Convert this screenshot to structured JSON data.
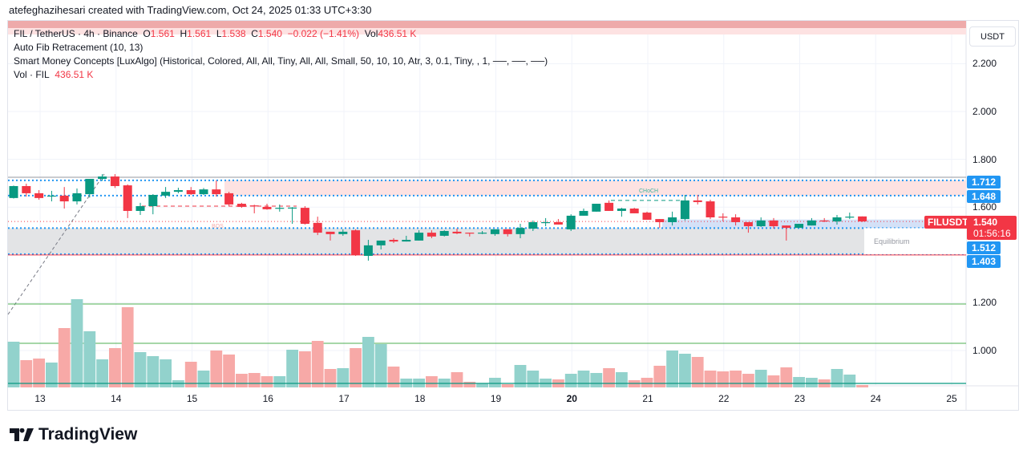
{
  "credit": "atefeghazihesari created with TradingView.com, Oct 24, 2025 01:33 UTC+3:30",
  "legend": {
    "symbol": "FIL / TetherUS · 4h · Binance",
    "o_label": "O",
    "o": "1.561",
    "h_label": "H",
    "h": "1.561",
    "l_label": "L",
    "l": "1.538",
    "c_label": "C",
    "c": "1.540",
    "change": "−0.022 (−1.41%)",
    "vol_label": "Vol",
    "vol": "436.51 K",
    "fib": "Auto Fib Retracement (10, 13)",
    "smc": "Smart Money Concepts [LuxAlgo] (Historical, Colored, All, All, Tiny, All, All, Small, 50, 10, 10, Atr, 3, 0.1, Tiny, , 1, ──, ──, ──)",
    "vol_title": "Vol · FIL",
    "vol_value": "436.51 K"
  },
  "currency_button": "USDT",
  "price_ticks": [
    "2.200",
    "2.000",
    "1.800",
    "1.600",
    "1.200",
    "1.000"
  ],
  "price_tick_values": [
    2.2,
    2.0,
    1.8,
    1.6,
    1.2,
    1.0
  ],
  "price_labels": [
    "1.712",
    "1.648",
    "1.512",
    "1.403"
  ],
  "current": {
    "symbol": "FILUSDT",
    "price": "1.540",
    "countdown": "01:56:16"
  },
  "annotations": {
    "bos": "BOS",
    "choch": "CHoCH",
    "equilibrium": "Equilibrium"
  },
  "days": [
    "13",
    "14",
    "15",
    "16",
    "17",
    "18",
    "19",
    "20",
    "21",
    "22",
    "23",
    "24",
    "25"
  ],
  "colors": {
    "up": "#089981",
    "down": "#f23645",
    "vol_up": "#92d2cc",
    "vol_down": "#f7a9a7",
    "zone_premium": "#fde2e2",
    "zone_eq": "#e3e4e6",
    "zone_blue": "#c9d9f5",
    "level": "#2196f3"
  },
  "brand": "TradingView",
  "chart_data": {
    "type": "candlestick",
    "timeframe": "4h",
    "ylim": [
      0.85,
      2.3
    ],
    "ohlc": [
      [
        1.638,
        1.688,
        1.69,
        1.636
      ],
      [
        1.688,
        1.658,
        1.698,
        1.644
      ],
      [
        1.658,
        1.638,
        1.671,
        1.631
      ],
      [
        1.644,
        1.648,
        1.668,
        1.624
      ],
      [
        1.648,
        1.624,
        1.684,
        1.594
      ],
      [
        1.624,
        1.658,
        1.678,
        1.611
      ],
      [
        1.654,
        1.718,
        1.718,
        1.64
      ],
      [
        1.718,
        1.728,
        1.738,
        1.71
      ],
      [
        1.728,
        1.688,
        1.738,
        1.68
      ],
      [
        1.691,
        1.584,
        1.695,
        1.554
      ],
      [
        1.584,
        1.604,
        1.618,
        1.567
      ],
      [
        1.604,
        1.651,
        1.654,
        1.57
      ],
      [
        1.648,
        1.664,
        1.684,
        1.638
      ],
      [
        1.664,
        1.671,
        1.681,
        1.658
      ],
      [
        1.671,
        1.654,
        1.684,
        1.651
      ],
      [
        1.654,
        1.674,
        1.68,
        1.651
      ],
      [
        1.674,
        1.654,
        1.711,
        1.644
      ],
      [
        1.658,
        1.611,
        1.664,
        1.604
      ],
      [
        1.614,
        1.601,
        1.618,
        1.597
      ],
      [
        1.607,
        1.604,
        1.61,
        1.574
      ],
      [
        1.601,
        1.591,
        1.614,
        1.589
      ],
      [
        1.594,
        1.597,
        1.611,
        1.581
      ],
      [
        1.597,
        1.598,
        1.6,
        1.53
      ],
      [
        1.597,
        1.53,
        1.604,
        1.527
      ],
      [
        1.534,
        1.493,
        1.56,
        1.483
      ],
      [
        1.497,
        1.487,
        1.497,
        1.46
      ],
      [
        1.487,
        1.497,
        1.507,
        1.48
      ],
      [
        1.503,
        1.399,
        1.507,
        1.396
      ],
      [
        1.396,
        1.44,
        1.463,
        1.376
      ],
      [
        1.44,
        1.46,
        1.46,
        1.423
      ],
      [
        1.463,
        1.456,
        1.47,
        1.45
      ],
      [
        1.456,
        1.463,
        1.48,
        1.456
      ],
      [
        1.46,
        1.493,
        1.503,
        1.46
      ],
      [
        1.493,
        1.477,
        1.503,
        1.47
      ],
      [
        1.48,
        1.5,
        1.503,
        1.477
      ],
      [
        1.497,
        1.49,
        1.51,
        1.487
      ],
      [
        1.493,
        1.49,
        1.493,
        1.477
      ],
      [
        1.49,
        1.493,
        1.5,
        1.487
      ],
      [
        1.487,
        1.507,
        1.507,
        1.48
      ],
      [
        1.507,
        1.487,
        1.507,
        1.477
      ],
      [
        1.487,
        1.513,
        1.53,
        1.47
      ],
      [
        1.51,
        1.537,
        1.544,
        1.5
      ],
      [
        1.535,
        1.537,
        1.554,
        1.52
      ],
      [
        1.537,
        1.527,
        1.55,
        1.527
      ],
      [
        1.507,
        1.564,
        1.57,
        1.5
      ],
      [
        1.564,
        1.584,
        1.594,
        1.564
      ],
      [
        1.581,
        1.614,
        1.614,
        1.581
      ],
      [
        1.618,
        1.584,
        1.628,
        1.584
      ],
      [
        1.584,
        1.594,
        1.597,
        1.56
      ],
      [
        1.594,
        1.574,
        1.597,
        1.574
      ],
      [
        1.577,
        1.547,
        1.581,
        1.547
      ],
      [
        1.55,
        1.537,
        1.55,
        1.513
      ],
      [
        1.537,
        1.557,
        1.581,
        1.523
      ],
      [
        1.55,
        1.628,
        1.651,
        1.544
      ],
      [
        1.628,
        1.621,
        1.651,
        1.611
      ],
      [
        1.624,
        1.557,
        1.631,
        1.55
      ],
      [
        1.56,
        1.557,
        1.574,
        1.54
      ],
      [
        1.557,
        1.537,
        1.57,
        1.523
      ],
      [
        1.537,
        1.52,
        1.537,
        1.493
      ],
      [
        1.52,
        1.544,
        1.557,
        1.517
      ],
      [
        1.544,
        1.52,
        1.554,
        1.51
      ],
      [
        1.523,
        1.513,
        1.523,
        1.46
      ],
      [
        1.513,
        1.53,
        1.53,
        1.513
      ],
      [
        1.523,
        1.544,
        1.554,
        1.523
      ],
      [
        1.544,
        1.542,
        1.554,
        1.537
      ],
      [
        1.54,
        1.557,
        1.567,
        1.527
      ],
      [
        1.557,
        1.56,
        1.577,
        1.55
      ],
      [
        1.561,
        1.54,
        1.561,
        1.538
      ]
    ],
    "volume_k": [
      8265,
      4930,
      5220,
      4495,
      10730,
      15950,
      10150,
      5075,
      7105,
      14500,
      6380,
      5655,
      5075,
      1305,
      4640,
      3045,
      6670,
      5945,
      2465,
      2610,
      2030,
      2030,
      6815,
      6525,
      8410,
      3335,
      3480,
      7105,
      9135,
      7830,
      3770,
      1595,
      1595,
      2030,
      1595,
      2755,
      1015,
      725,
      1740,
      580,
      4060,
      3045,
      1595,
      1450,
      2465,
      3045,
      2610,
      3480,
      2755,
      1305,
      1740,
      3915,
      6670,
      6090,
      5510,
      3045,
      2900,
      3045,
      2465,
      3190,
      2175,
      3625,
      1885,
      1740,
      1450,
      3335,
      2320,
      436.51
    ],
    "levels": {
      "premium_top": 1.712,
      "premium_bottom": 1.648,
      "equilibrium_top": 1.512,
      "discount_bottom": 1.403,
      "swing_high": 1.725,
      "bos": 1.604,
      "choch": 1.628,
      "current": 1.54
    }
  }
}
